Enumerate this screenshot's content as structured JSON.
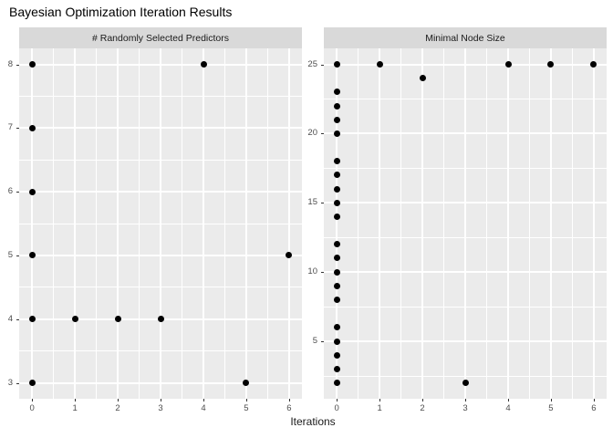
{
  "title": "Bayesian Optimization Iteration Results",
  "x_axis_label": "Iterations",
  "colors": {
    "page_bg": "#FFFFFF",
    "panel_bg": "#EBEBEB",
    "strip_bg": "#D9D9D9",
    "grid": "#FFFFFF",
    "point": "#000000",
    "axis_text": "#4D4D4D",
    "tick_mark": "#333333",
    "title_text": "#000000",
    "strip_text": "#1A1A1A",
    "axis_title_text": "#1A1A1A"
  },
  "chart_data": [
    {
      "type": "scatter",
      "facet_label": "# Randomly Selected Predictors",
      "xlabel": "Iterations",
      "ylabel": "",
      "xlim": [
        0,
        6
      ],
      "ylim": [
        3,
        8
      ],
      "x_ticks": [
        0,
        1,
        2,
        3,
        4,
        5,
        6
      ],
      "y_ticks": [
        3,
        4,
        5,
        6,
        7,
        8
      ],
      "x_minor": [
        0.5,
        1.5,
        2.5,
        3.5,
        4.5,
        5.5
      ],
      "y_minor": [
        3.5,
        4.5,
        5.5,
        6.5,
        7.5
      ],
      "grid": true,
      "legend": "none",
      "points": [
        [
          0,
          3
        ],
        [
          0,
          4
        ],
        [
          0,
          5
        ],
        [
          0,
          6
        ],
        [
          0,
          7
        ],
        [
          0,
          8
        ],
        [
          1,
          4
        ],
        [
          2,
          4
        ],
        [
          3,
          4
        ],
        [
          4,
          8
        ],
        [
          5,
          3
        ],
        [
          6,
          5
        ]
      ]
    },
    {
      "type": "scatter",
      "facet_label": "Minimal Node Size",
      "xlabel": "Iterations",
      "ylabel": "",
      "xlim": [
        0,
        6
      ],
      "ylim": [
        2,
        25
      ],
      "x_ticks": [
        0,
        1,
        2,
        3,
        4,
        5,
        6
      ],
      "y_ticks": [
        5,
        10,
        15,
        20,
        25
      ],
      "x_minor": [
        0.5,
        1.5,
        2.5,
        3.5,
        4.5,
        5.5
      ],
      "y_minor": [
        2.5,
        7.5,
        12.5,
        17.5,
        22.5
      ],
      "grid": true,
      "legend": "none",
      "points": [
        [
          0,
          2
        ],
        [
          0,
          3
        ],
        [
          0,
          4
        ],
        [
          0,
          5
        ],
        [
          0,
          6
        ],
        [
          0,
          8
        ],
        [
          0,
          9
        ],
        [
          0,
          10
        ],
        [
          0,
          11
        ],
        [
          0,
          12
        ],
        [
          0,
          14
        ],
        [
          0,
          15
        ],
        [
          0,
          16
        ],
        [
          0,
          17
        ],
        [
          0,
          18
        ],
        [
          0,
          20
        ],
        [
          0,
          21
        ],
        [
          0,
          22
        ],
        [
          0,
          23
        ],
        [
          0,
          25
        ],
        [
          1,
          25
        ],
        [
          2,
          24
        ],
        [
          3,
          2
        ],
        [
          4,
          25
        ],
        [
          5,
          25
        ],
        [
          6,
          25
        ]
      ]
    }
  ]
}
